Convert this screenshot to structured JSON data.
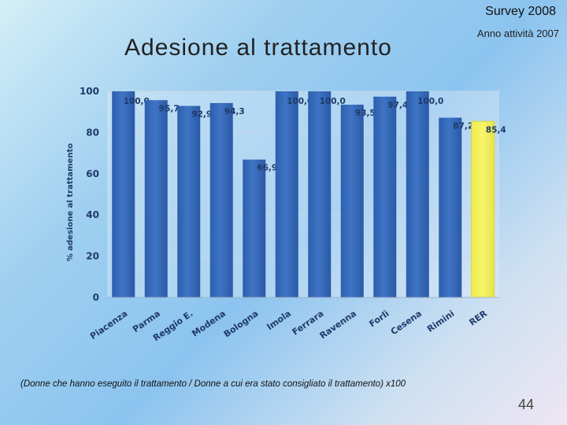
{
  "header": {
    "survey": "Survey 2008",
    "anno": "Anno attività 2007",
    "title": "Adesione al trattamento"
  },
  "footer": {
    "note": "(Donne che hanno eseguito il trattamento / Donne a cui era stato consigliato il trattamento) x100",
    "page": "44"
  },
  "colors": {
    "bar": "#3f74c4",
    "bar_highlight": "#f7f56a",
    "grid": "#c8d6e6",
    "label": "#1f3a6a"
  },
  "chart_data": {
    "type": "bar",
    "title": "",
    "xlabel": "",
    "ylabel": "% adesione al trattamento",
    "ylim": [
      0,
      100
    ],
    "yticks": [
      0,
      20,
      40,
      60,
      80,
      100
    ],
    "grid": true,
    "categories": [
      "Piacenza",
      "Parma",
      "Reggio E.",
      "Modena",
      "Bologna",
      "Imola",
      "Ferrara",
      "Ravenna",
      "Forlì",
      "Cesena",
      "Rimini",
      "RER"
    ],
    "values": [
      100.0,
      95.7,
      92.9,
      94.3,
      66.9,
      100.0,
      100.0,
      93.5,
      97.4,
      100.0,
      87.2,
      85.4
    ],
    "value_labels": [
      "100,0",
      "95,7",
      "92,9",
      "94,3",
      "66,9",
      "100,0",
      "100,0",
      "93,5",
      "97,4",
      "100,0",
      "87,2",
      "85,4"
    ],
    "highlight": "RER"
  }
}
